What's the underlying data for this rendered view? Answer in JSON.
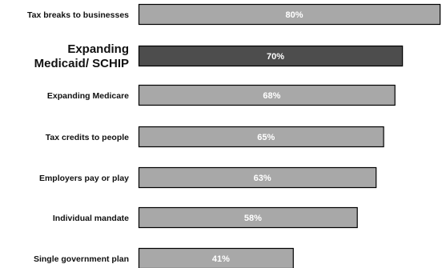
{
  "chart_data": {
    "type": "bar",
    "orientation": "horizontal",
    "categories": [
      "Tax breaks to businesses",
      "Expanding Medicaid/ SCHIP",
      "Expanding Medicare",
      "Tax credits to people",
      "Employers pay or play",
      "Individual mandate",
      "Single government plan"
    ],
    "values": [
      80,
      70,
      68,
      65,
      63,
      58,
      41
    ],
    "value_labels": [
      "80%",
      "70%",
      "68%",
      "65%",
      "63%",
      "58%",
      "41%"
    ],
    "highlighted_category": "Expanding Medicaid/ SCHIP",
    "title": "",
    "xlabel": "",
    "ylabel": "",
    "xlim": [
      0,
      80
    ],
    "grid": false,
    "legend": "none",
    "colors": {
      "bar": "#a8a8a8",
      "highlight_bar": "#4d4d4d",
      "bar_outline": "#000000",
      "value_text": "#ffffff",
      "category_text": "#111111"
    }
  }
}
